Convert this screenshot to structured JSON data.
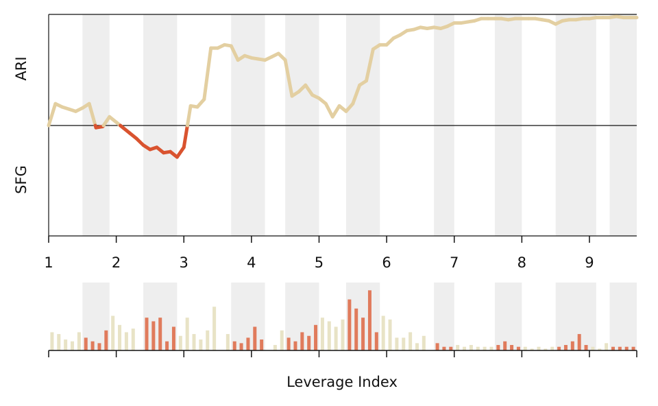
{
  "chart_data": [
    {
      "type": "line",
      "title": "",
      "ylabel_top": "ARI",
      "ylabel_bottom": "SFG",
      "x_ticks": [
        1,
        2,
        3,
        4,
        5,
        6,
        7,
        8,
        9
      ],
      "xlim": [
        1,
        9.7
      ],
      "ylim": [
        -1,
        1
      ],
      "baseline": 0,
      "grid": false,
      "shaded_bands": [
        [
          1.5,
          1.9
        ],
        [
          2.4,
          2.9
        ],
        [
          3.7,
          4.2
        ],
        [
          4.5,
          5.0
        ],
        [
          5.4,
          5.9
        ],
        [
          6.7,
          7.0
        ],
        [
          7.6,
          8.0
        ],
        [
          8.5,
          9.1
        ],
        [
          9.3,
          9.7
        ]
      ],
      "colors": {
        "positive": "#e3cfa1",
        "negative": "#d9532f",
        "band": "#eeeeee"
      },
      "series": [
        {
          "x": [
            1.0,
            1.1,
            1.2,
            1.3,
            1.4,
            1.5,
            1.6,
            1.7,
            1.8,
            1.9,
            2.0,
            2.1,
            2.2,
            2.3,
            2.4,
            2.5,
            2.6,
            2.7,
            2.8,
            2.9,
            3.0,
            3.1,
            3.2,
            3.3,
            3.4,
            3.5,
            3.6,
            3.7,
            3.8,
            3.9,
            4.0,
            4.1,
            4.2,
            4.3,
            4.4,
            4.5,
            4.6,
            4.7,
            4.8,
            4.9,
            5.0,
            5.1,
            5.2,
            5.3,
            5.4,
            5.5,
            5.6,
            5.7,
            5.8,
            5.9,
            6.0,
            6.1,
            6.2,
            6.3,
            6.4,
            6.5,
            6.6,
            6.7,
            6.8,
            6.9,
            7.0,
            7.1,
            7.2,
            7.3,
            7.4,
            7.5,
            7.6,
            7.7,
            7.8,
            7.9,
            8.0,
            8.1,
            8.2,
            8.3,
            8.4,
            8.5,
            8.6,
            8.7,
            8.8,
            8.9,
            9.0,
            9.1,
            9.2,
            9.3,
            9.4,
            9.5,
            9.6,
            9.7
          ],
          "y": [
            0.0,
            0.2,
            0.17,
            0.15,
            0.13,
            0.16,
            0.2,
            -0.02,
            -0.01,
            0.08,
            0.03,
            -0.02,
            -0.07,
            -0.12,
            -0.18,
            -0.22,
            -0.2,
            -0.25,
            -0.24,
            -0.29,
            -0.2,
            0.18,
            0.17,
            0.24,
            0.71,
            0.71,
            0.74,
            0.73,
            0.6,
            0.64,
            0.62,
            0.61,
            0.6,
            0.63,
            0.66,
            0.6,
            0.27,
            0.31,
            0.37,
            0.28,
            0.25,
            0.2,
            0.08,
            0.18,
            0.13,
            0.2,
            0.37,
            0.41,
            0.7,
            0.74,
            0.74,
            0.8,
            0.83,
            0.87,
            0.88,
            0.9,
            0.89,
            0.9,
            0.89,
            0.91,
            0.94,
            0.94,
            0.95,
            0.96,
            0.98,
            0.98,
            0.98,
            0.98,
            0.97,
            0.98,
            0.98,
            0.98,
            0.98,
            0.97,
            0.96,
            0.93,
            0.96,
            0.97,
            0.97,
            0.98,
            0.98,
            0.99,
            0.99,
            0.99,
            1.0,
            0.99,
            0.99,
            0.99
          ]
        }
      ]
    },
    {
      "type": "bar",
      "title": "",
      "xlabel": "Leverage Index",
      "xlim": [
        1,
        9.7
      ],
      "x_ticks": [
        1,
        2,
        3,
        4,
        5,
        6,
        7,
        8,
        9
      ],
      "shaded_bands": [
        [
          1.5,
          1.9
        ],
        [
          2.4,
          2.9
        ],
        [
          3.7,
          4.2
        ],
        [
          4.5,
          5.0
        ],
        [
          5.4,
          5.9
        ],
        [
          6.7,
          7.0
        ],
        [
          7.6,
          8.0
        ],
        [
          8.5,
          9.1
        ],
        [
          9.3,
          9.7
        ]
      ],
      "colors": {
        "light": "#e8e3c6",
        "dark": "#e07b5c",
        "band": "#eeeeee"
      },
      "bars": [
        {
          "x": 1.05,
          "v": 0.1,
          "c": "light"
        },
        {
          "x": 1.15,
          "v": 0.09,
          "c": "light"
        },
        {
          "x": 1.25,
          "v": 0.06,
          "c": "light"
        },
        {
          "x": 1.35,
          "v": 0.05,
          "c": "light"
        },
        {
          "x": 1.45,
          "v": 0.1,
          "c": "light"
        },
        {
          "x": 1.55,
          "v": 0.07,
          "c": "dark"
        },
        {
          "x": 1.65,
          "v": 0.05,
          "c": "dark"
        },
        {
          "x": 1.75,
          "v": 0.04,
          "c": "dark"
        },
        {
          "x": 1.85,
          "v": 0.11,
          "c": "dark"
        },
        {
          "x": 1.95,
          "v": 0.19,
          "c": "light"
        },
        {
          "x": 2.05,
          "v": 0.14,
          "c": "light"
        },
        {
          "x": 2.15,
          "v": 0.1,
          "c": "light"
        },
        {
          "x": 2.25,
          "v": 0.12,
          "c": "light"
        },
        {
          "x": 2.45,
          "v": 0.18,
          "c": "dark"
        },
        {
          "x": 2.55,
          "v": 0.16,
          "c": "dark"
        },
        {
          "x": 2.65,
          "v": 0.18,
          "c": "dark"
        },
        {
          "x": 2.75,
          "v": 0.05,
          "c": "dark"
        },
        {
          "x": 2.85,
          "v": 0.13,
          "c": "dark"
        },
        {
          "x": 2.95,
          "v": 0.08,
          "c": "light"
        },
        {
          "x": 3.05,
          "v": 0.18,
          "c": "light"
        },
        {
          "x": 3.15,
          "v": 0.09,
          "c": "light"
        },
        {
          "x": 3.25,
          "v": 0.06,
          "c": "light"
        },
        {
          "x": 3.35,
          "v": 0.11,
          "c": "light"
        },
        {
          "x": 3.45,
          "v": 0.24,
          "c": "light"
        },
        {
          "x": 3.65,
          "v": 0.09,
          "c": "light"
        },
        {
          "x": 3.75,
          "v": 0.05,
          "c": "dark"
        },
        {
          "x": 3.85,
          "v": 0.04,
          "c": "dark"
        },
        {
          "x": 3.95,
          "v": 0.07,
          "c": "dark"
        },
        {
          "x": 4.05,
          "v": 0.13,
          "c": "dark"
        },
        {
          "x": 4.15,
          "v": 0.06,
          "c": "dark"
        },
        {
          "x": 4.35,
          "v": 0.03,
          "c": "light"
        },
        {
          "x": 4.45,
          "v": 0.11,
          "c": "light"
        },
        {
          "x": 4.55,
          "v": 0.07,
          "c": "dark"
        },
        {
          "x": 4.65,
          "v": 0.05,
          "c": "dark"
        },
        {
          "x": 4.75,
          "v": 0.1,
          "c": "dark"
        },
        {
          "x": 4.85,
          "v": 0.08,
          "c": "dark"
        },
        {
          "x": 4.95,
          "v": 0.14,
          "c": "dark"
        },
        {
          "x": 5.05,
          "v": 0.18,
          "c": "light"
        },
        {
          "x": 5.15,
          "v": 0.16,
          "c": "light"
        },
        {
          "x": 5.25,
          "v": 0.13,
          "c": "light"
        },
        {
          "x": 5.35,
          "v": 0.17,
          "c": "light"
        },
        {
          "x": 5.45,
          "v": 0.28,
          "c": "dark"
        },
        {
          "x": 5.55,
          "v": 0.23,
          "c": "dark"
        },
        {
          "x": 5.65,
          "v": 0.18,
          "c": "dark"
        },
        {
          "x": 5.75,
          "v": 0.33,
          "c": "dark"
        },
        {
          "x": 5.85,
          "v": 0.1,
          "c": "dark"
        },
        {
          "x": 5.95,
          "v": 0.19,
          "c": "light"
        },
        {
          "x": 6.05,
          "v": 0.17,
          "c": "light"
        },
        {
          "x": 6.15,
          "v": 0.07,
          "c": "light"
        },
        {
          "x": 6.25,
          "v": 0.07,
          "c": "light"
        },
        {
          "x": 6.35,
          "v": 0.1,
          "c": "light"
        },
        {
          "x": 6.45,
          "v": 0.04,
          "c": "light"
        },
        {
          "x": 6.55,
          "v": 0.08,
          "c": "light"
        },
        {
          "x": 6.75,
          "v": 0.04,
          "c": "dark"
        },
        {
          "x": 6.85,
          "v": 0.02,
          "c": "dark"
        },
        {
          "x": 6.95,
          "v": 0.02,
          "c": "dark"
        },
        {
          "x": 7.05,
          "v": 0.03,
          "c": "light"
        },
        {
          "x": 7.15,
          "v": 0.02,
          "c": "light"
        },
        {
          "x": 7.25,
          "v": 0.03,
          "c": "light"
        },
        {
          "x": 7.35,
          "v": 0.02,
          "c": "light"
        },
        {
          "x": 7.45,
          "v": 0.02,
          "c": "light"
        },
        {
          "x": 7.55,
          "v": 0.02,
          "c": "light"
        },
        {
          "x": 7.65,
          "v": 0.03,
          "c": "dark"
        },
        {
          "x": 7.75,
          "v": 0.05,
          "c": "dark"
        },
        {
          "x": 7.85,
          "v": 0.03,
          "c": "dark"
        },
        {
          "x": 7.95,
          "v": 0.02,
          "c": "dark"
        },
        {
          "x": 8.05,
          "v": 0.02,
          "c": "light"
        },
        {
          "x": 8.15,
          "v": 0.01,
          "c": "light"
        },
        {
          "x": 8.25,
          "v": 0.02,
          "c": "light"
        },
        {
          "x": 8.35,
          "v": 0.01,
          "c": "light"
        },
        {
          "x": 8.45,
          "v": 0.02,
          "c": "light"
        },
        {
          "x": 8.55,
          "v": 0.02,
          "c": "dark"
        },
        {
          "x": 8.65,
          "v": 0.03,
          "c": "dark"
        },
        {
          "x": 8.75,
          "v": 0.05,
          "c": "dark"
        },
        {
          "x": 8.85,
          "v": 0.09,
          "c": "dark"
        },
        {
          "x": 8.95,
          "v": 0.03,
          "c": "dark"
        },
        {
          "x": 9.05,
          "v": 0.02,
          "c": "light"
        },
        {
          "x": 9.15,
          "v": 0.01,
          "c": "light"
        },
        {
          "x": 9.25,
          "v": 0.04,
          "c": "light"
        },
        {
          "x": 9.35,
          "v": 0.02,
          "c": "dark"
        },
        {
          "x": 9.45,
          "v": 0.02,
          "c": "dark"
        },
        {
          "x": 9.55,
          "v": 0.02,
          "c": "dark"
        },
        {
          "x": 9.65,
          "v": 0.02,
          "c": "dark"
        }
      ],
      "ylim": [
        0,
        0.35
      ]
    }
  ]
}
